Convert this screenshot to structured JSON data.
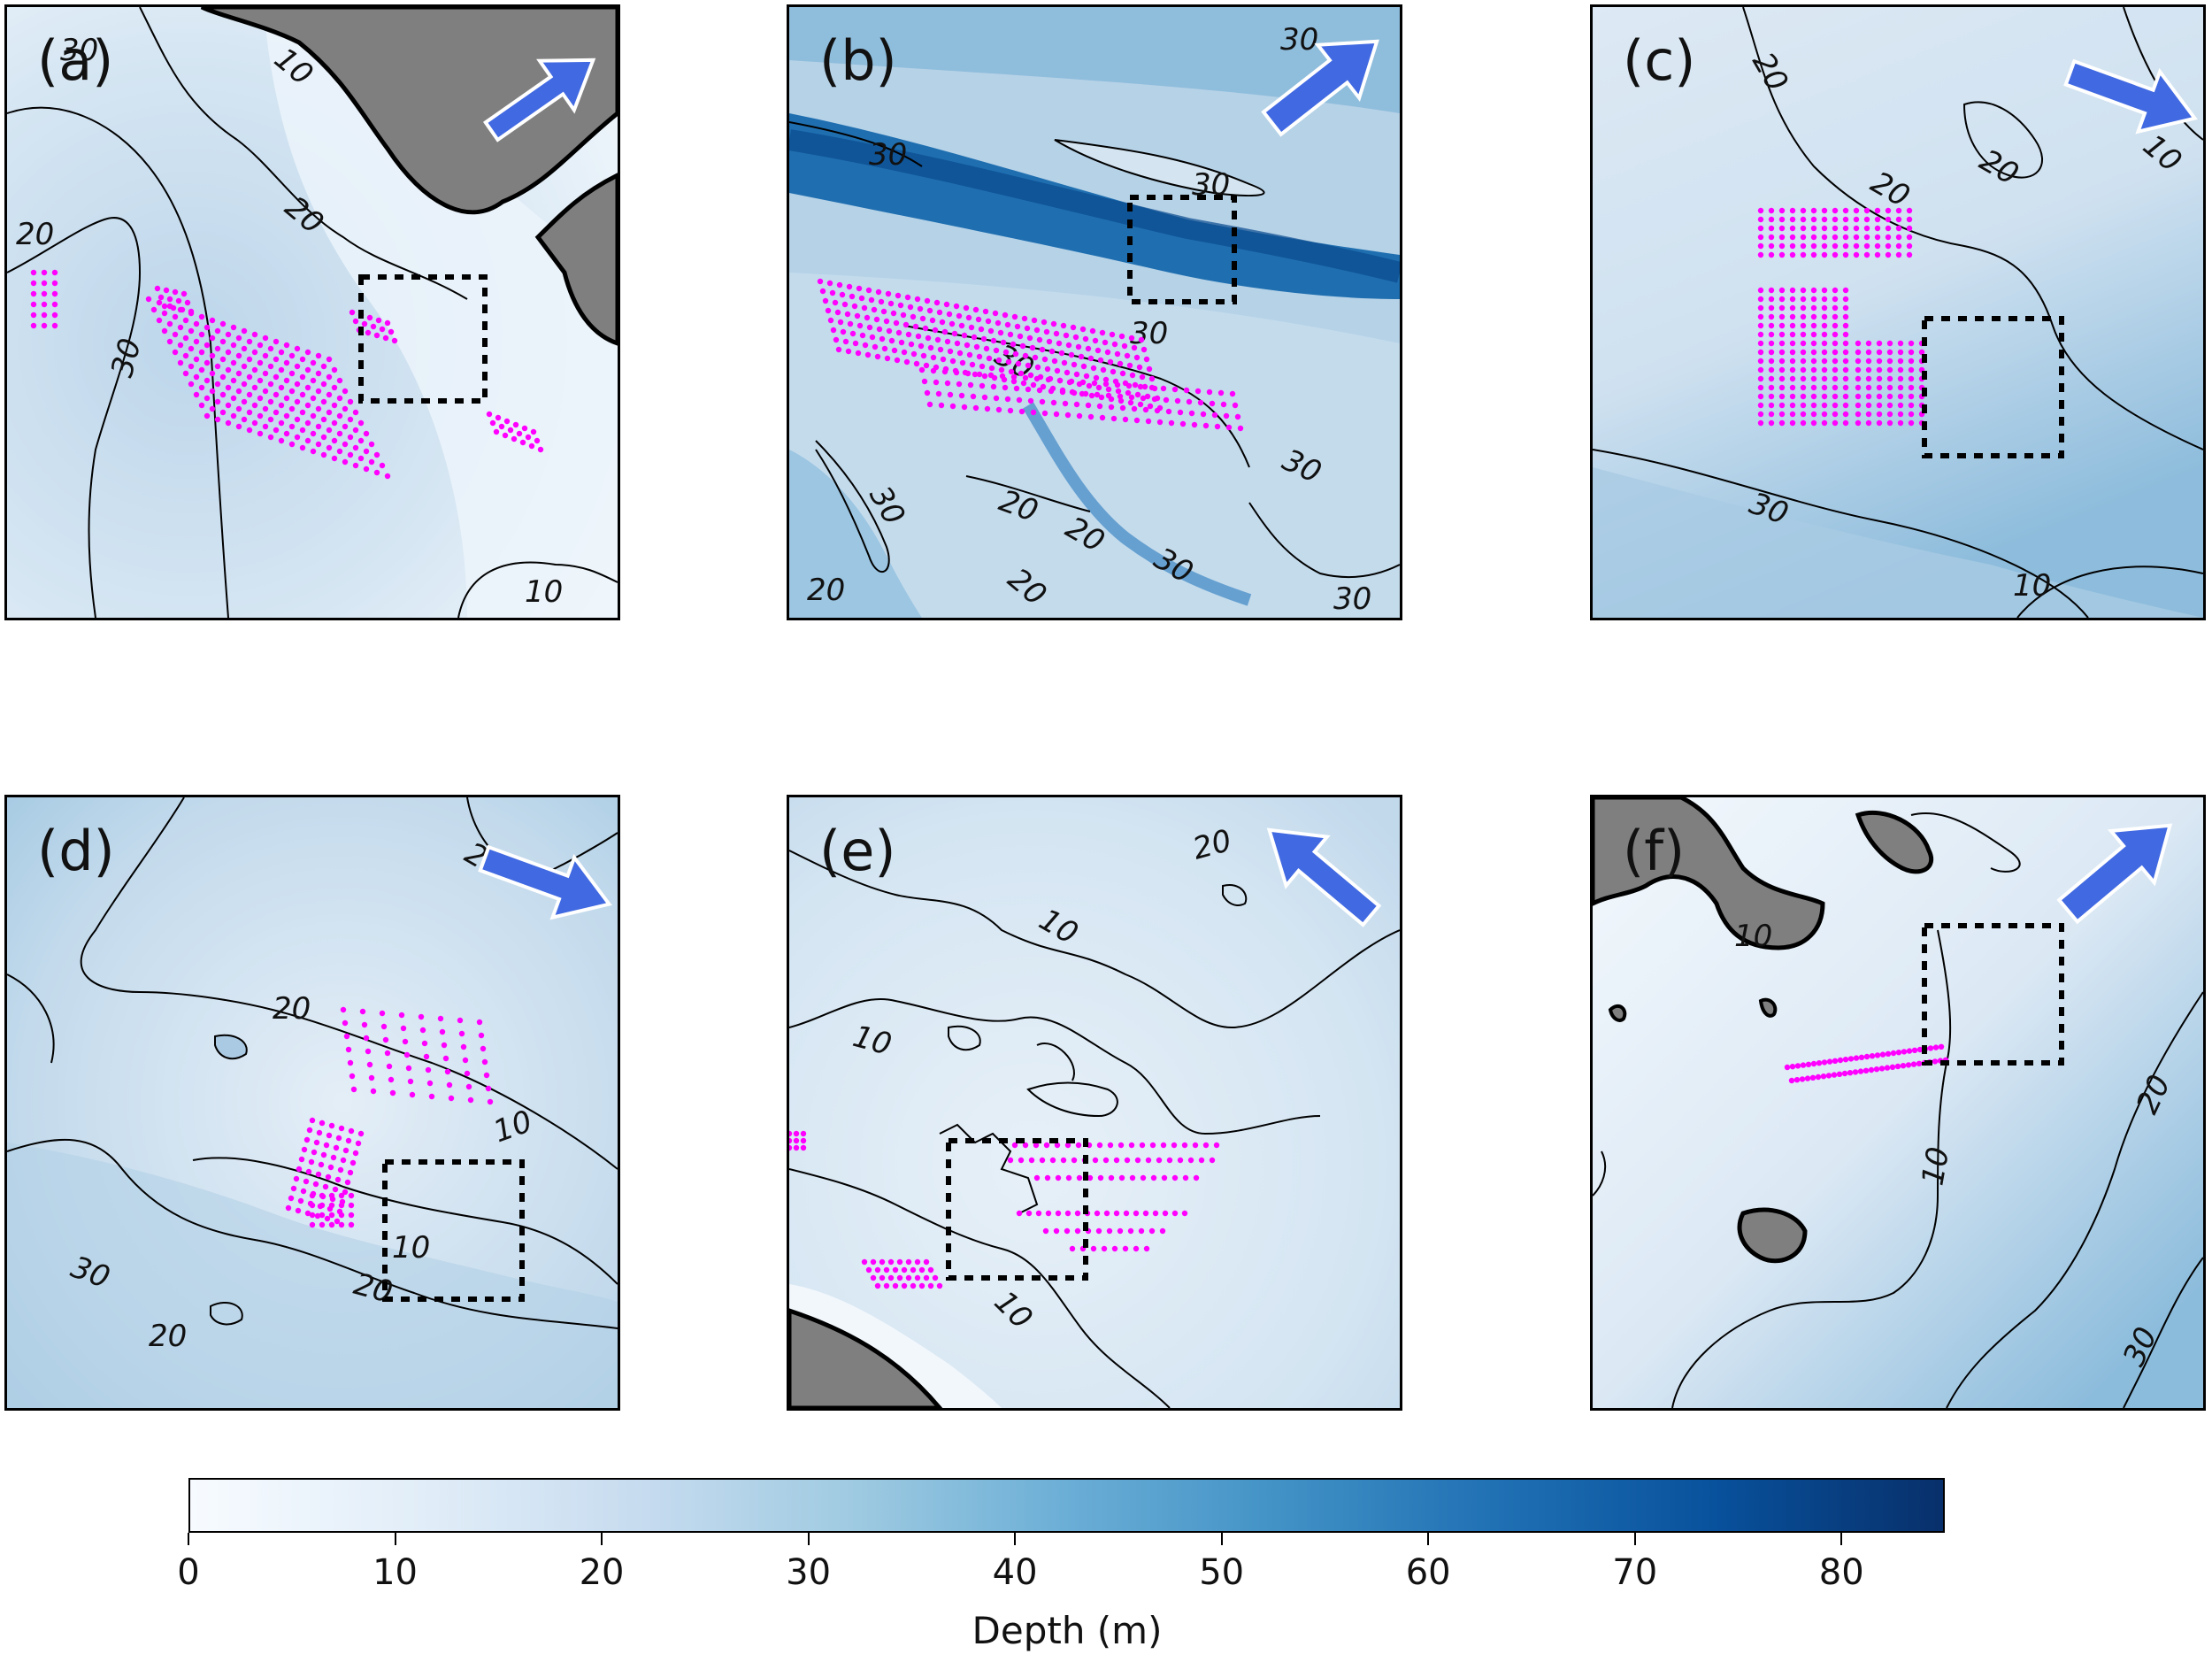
{
  "figure": {
    "panels": [
      {
        "id": "a",
        "label": "(a)",
        "bg": [
          "#d3e4f1",
          "#c3d8ea",
          "#e9f2f9"
        ],
        "contour_labels": [
          "10",
          "20",
          "30",
          "10",
          "20",
          "30"
        ],
        "has_land": true,
        "wind_direction": "northeast"
      },
      {
        "id": "b",
        "label": "(b)",
        "bg": [
          "#b9d4e8",
          "#a6c8e2",
          "#d4e5f1"
        ],
        "contour_labels": [
          "30",
          "30",
          "30",
          "30",
          "30",
          "20",
          "20",
          "30",
          "30",
          "20",
          "30",
          "20",
          "30"
        ],
        "has_land": false,
        "wind_direction": "northeast"
      },
      {
        "id": "c",
        "label": "(c)",
        "bg": [
          "#cfe1f0",
          "#b8d3e8",
          "#dbe8f4"
        ],
        "contour_labels": [
          "20",
          "20",
          "10",
          "20",
          "30",
          "10"
        ],
        "has_land": false,
        "wind_direction": "east-southeast"
      },
      {
        "id": "d",
        "label": "(d)",
        "bg": [
          "#c8dcee",
          "#b3cfe6",
          "#dfebf6"
        ],
        "contour_labels": [
          "20",
          "20",
          "10",
          "10",
          "20",
          "30",
          "20"
        ],
        "has_land": false,
        "wind_direction": "east-southeast"
      },
      {
        "id": "e",
        "label": "(e)",
        "bg": [
          "#d7e6f3",
          "#cadff0",
          "#eef5fb"
        ],
        "contour_labels": [
          "20",
          "10",
          "10",
          "10"
        ],
        "has_land": true,
        "wind_direction": "northwest"
      },
      {
        "id": "f",
        "label": "(f)",
        "bg": [
          "#e6f0f8",
          "#d2e3f1",
          "#a9cbe4"
        ],
        "contour_labels": [
          "10",
          "10",
          "20",
          "30"
        ],
        "has_land": true,
        "wind_direction": "northeast"
      }
    ],
    "colors": {
      "survey_points": "#ff00ff",
      "wind_arrow": "#4169e1",
      "land": "#7f7f7f",
      "contour": "#000000",
      "box": "#000000"
    },
    "colorbar": {
      "title": "Depth (m)",
      "min": 0,
      "max": 85,
      "ticks": [
        "0",
        "10",
        "20",
        "30",
        "40",
        "50",
        "60",
        "70",
        "80"
      ],
      "colormap": "Blues"
    }
  }
}
